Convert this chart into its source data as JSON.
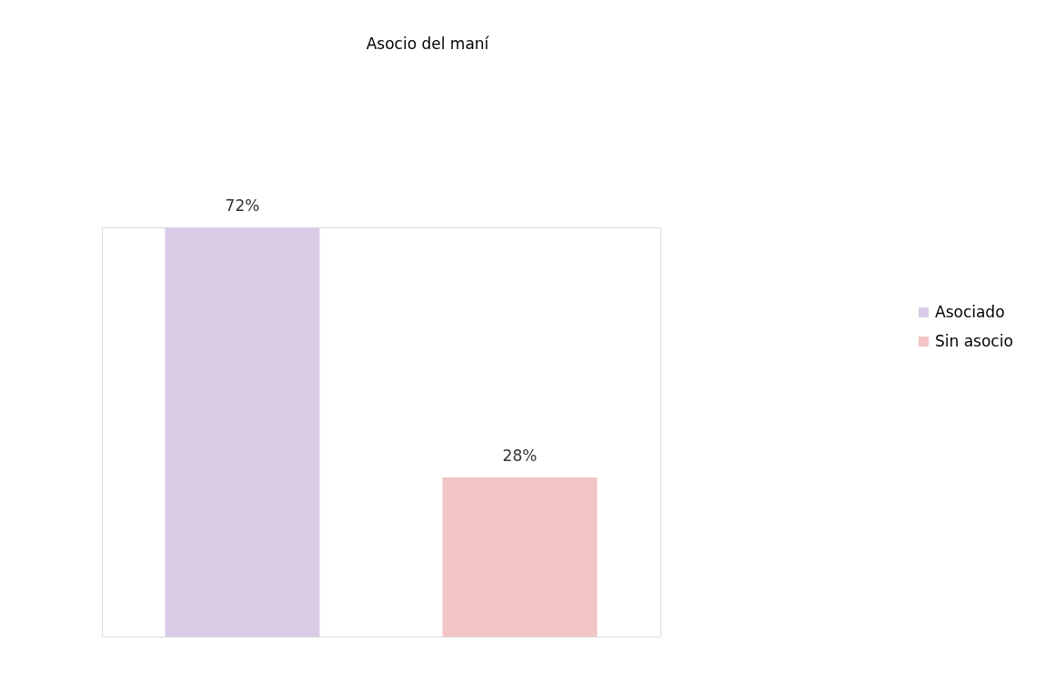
{
  "chart_data": {
    "type": "bar",
    "title": "Asocio del maní",
    "categories": [
      null
    ],
    "series": [
      {
        "name": "Asociado",
        "color": "#d9cce6",
        "values": [
          72
        ],
        "value_labels": [
          "72%"
        ]
      },
      {
        "name": "Sin asocio",
        "color": "#f2c4c4",
        "values": [
          28
        ],
        "value_labels": [
          "28%"
        ]
      }
    ],
    "legend": "right"
  }
}
